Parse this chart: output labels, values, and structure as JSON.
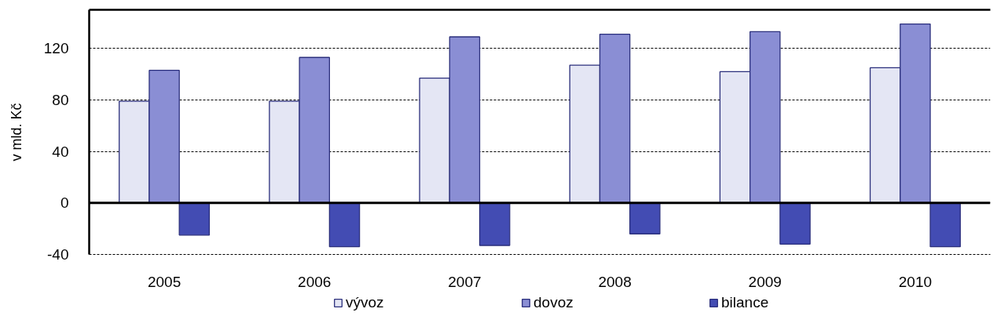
{
  "chart_data": {
    "type": "bar",
    "ylabel": "v mld. Kč",
    "categories": [
      "2005",
      "2006",
      "2007",
      "2008",
      "2009",
      "2010"
    ],
    "series": [
      {
        "name": "vývoz",
        "color": "#e4e6f4",
        "values": [
          79,
          79,
          97,
          107,
          102,
          105
        ]
      },
      {
        "name": "dovoz",
        "color": "#8a8ed4",
        "values": [
          103,
          113,
          129,
          131,
          133,
          139
        ]
      },
      {
        "name": "bilance",
        "color": "#434cb3",
        "values": [
          -25,
          -34,
          -33,
          -24,
          -32,
          -34
        ]
      }
    ],
    "ylim": [
      -40,
      150
    ],
    "yticks": [
      -40,
      0,
      40,
      80,
      120
    ],
    "grid": "y",
    "legend": "bottom"
  }
}
